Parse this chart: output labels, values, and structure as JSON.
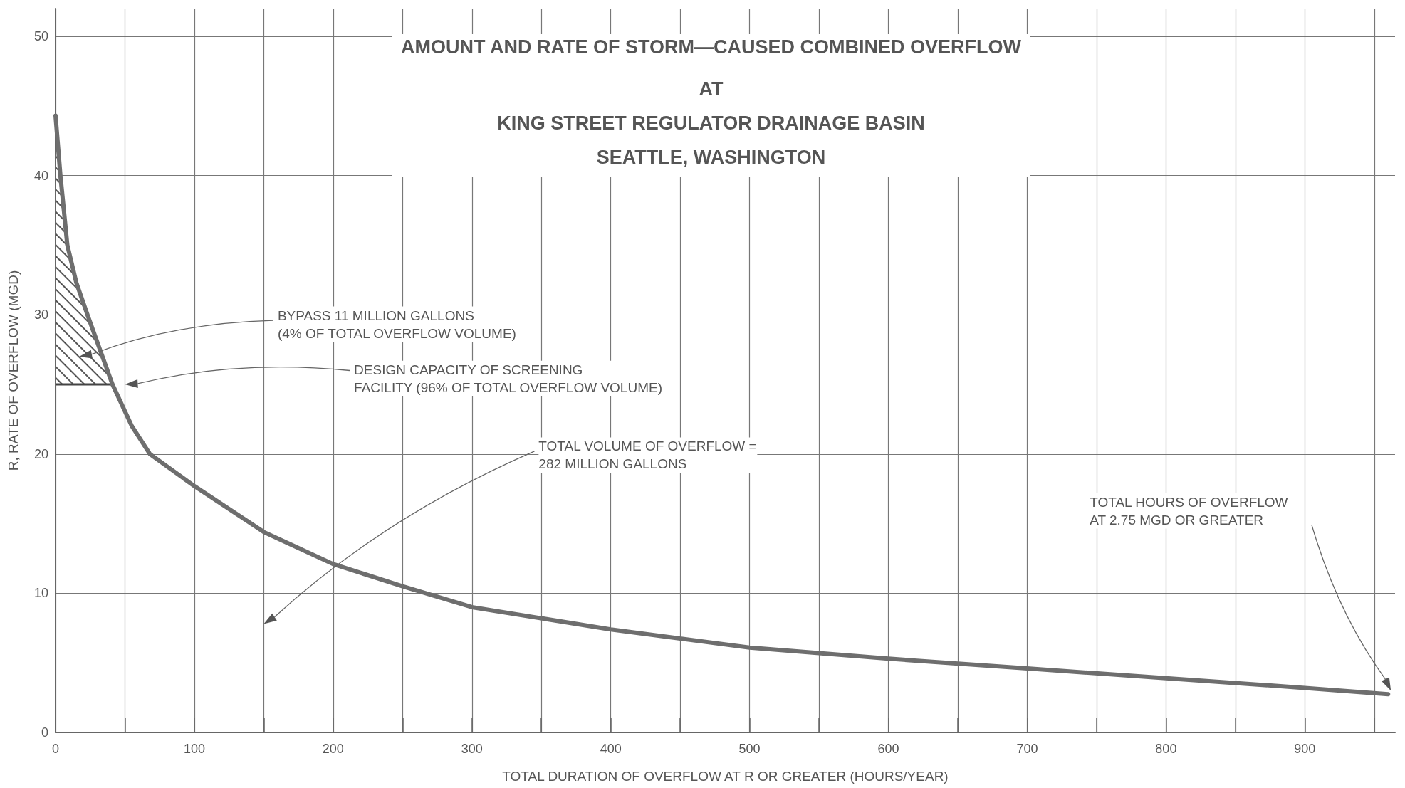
{
  "chart_data": {
    "type": "line",
    "title": "AMOUNT AND RATE OF STORM—CAUSED COMBINED OVERFLOW",
    "subtitle": "AT\nKING STREET REGULATOR DRAINAGE BASIN\nSEATTLE, WASHINGTON",
    "xlabel": "TOTAL DURATION OF OVERFLOW AT R OR GREATER (HOURS/YEAR)",
    "ylabel": "R, RATE OF OVERFLOW (MGD)",
    "x": [
      0,
      3.5,
      8.5,
      15,
      23,
      41,
      55,
      68,
      100,
      150,
      200,
      250,
      300,
      400,
      500,
      600,
      700,
      800,
      900,
      960
    ],
    "series": [
      {
        "color": "#6e6e6e",
        "values": [
          44.3,
          40,
          35,
          32.3,
          30,
          25,
          22,
          20,
          17.7,
          14.4,
          12.1,
          10.5,
          9.0,
          7.4,
          6.1,
          5.3,
          4.6,
          3.9,
          3.2,
          2.75
        ],
        "lower": [
          25,
          25,
          25,
          25,
          25,
          25,
          null,
          null,
          null,
          null,
          null,
          null,
          null,
          null,
          null,
          null,
          null,
          null,
          null,
          null
        ],
        "upper": [
          44.3,
          40,
          35,
          32.3,
          30,
          25,
          null,
          null,
          null,
          null,
          null,
          null,
          null,
          null,
          null,
          null,
          null,
          null,
          null,
          null
        ]
      }
    ],
    "xlim": [
      0,
      965
    ],
    "ylim": [
      0,
      52
    ],
    "xticks": [
      0,
      {
        "value": 50,
        "label": null
      },
      100,
      {
        "value": 150,
        "label": null
      },
      200,
      {
        "value": 250,
        "label": null
      },
      300,
      {
        "value": 350,
        "label": null
      },
      400,
      {
        "value": 450,
        "label": null
      },
      500,
      {
        "value": 550,
        "label": null
      },
      600,
      {
        "value": 650,
        "label": null
      },
      700,
      {
        "value": 750,
        "label": null
      },
      800,
      {
        "value": 850,
        "label": null
      },
      900,
      {
        "value": 950,
        "label": null
      }
    ],
    "yticks": [
      0,
      10,
      20,
      30,
      40,
      50
    ],
    "grid": true,
    "marker": "none",
    "line_style": "solid",
    "annotations": [
      "BYPASS 11 MILLION GALLONS\n(4% OF TOTAL OVERFLOW VOLUME)",
      "DESIGN CAPACITY OF SCREENING\nFACILITY (96% OF TOTAL OVERFLOW VOLUME)",
      "TOTAL VOLUME OF OVERFLOW =\n282 MILLION GALLONS",
      "TOTAL HOURS OF OVERFLOW\nAT 2.75 MGD OR GREATER"
    ]
  }
}
